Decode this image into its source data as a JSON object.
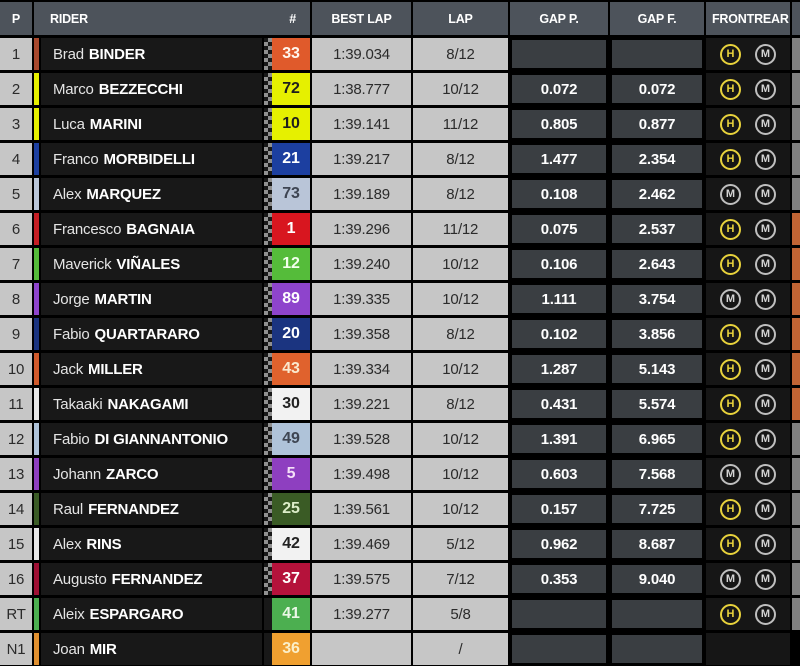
{
  "header": {
    "p": "P",
    "rider": "RIDER",
    "num": "#",
    "best_lap": "BEST LAP",
    "lap": "LAP",
    "gap_p": "GAP P.",
    "gap_f": "GAP F.",
    "front": "FRONT",
    "rear": "REAR"
  },
  "colors": {
    "header_bg": "#4D535B",
    "row_dark_bg": "#181818",
    "gray_cell_bg": "#C6C6C6",
    "gap_box_bg": "#3A3E42",
    "hard_tire": "#E8D23C",
    "medium_tire": "#CFCFCF",
    "edge_gray": "#808080",
    "edge_orange": "#C06434"
  },
  "tire_legend": {
    "H": "hard",
    "M": "medium"
  },
  "rows": [
    {
      "pos": "1",
      "first": "Brad",
      "last": "BINDER",
      "num": "33",
      "num_bg": "#E05A2B",
      "num_fg": "#FFF7EE",
      "stripe": "#A8492E",
      "best": "1:39.034",
      "lap": "8/12",
      "gap_p": "",
      "gap_f": "",
      "front": "H",
      "rear": "M",
      "edge": "#808080",
      "dots": true
    },
    {
      "pos": "2",
      "first": "Marco",
      "last": "BEZZECCHI",
      "num": "72",
      "num_bg": "#E6F000",
      "num_fg": "#1E1E1E",
      "stripe": "#E6F000",
      "best": "1:38.777",
      "lap": "10/12",
      "gap_p": "0.072",
      "gap_f": "0.072",
      "front": "H",
      "rear": "M",
      "edge": "#808080",
      "dots": true
    },
    {
      "pos": "3",
      "first": "Luca",
      "last": "MARINI",
      "num": "10",
      "num_bg": "#E6F000",
      "num_fg": "#1E1E1E",
      "stripe": "#E6F000",
      "best": "1:39.141",
      "lap": "11/12",
      "gap_p": "0.805",
      "gap_f": "0.877",
      "front": "H",
      "rear": "M",
      "edge": "#808080",
      "dots": true
    },
    {
      "pos": "4",
      "first": "Franco",
      "last": "MORBIDELLI",
      "num": "21",
      "num_bg": "#1C3FA0",
      "num_fg": "#FFFFFF",
      "stripe": "#1C3FA0",
      "best": "1:39.217",
      "lap": "8/12",
      "gap_p": "1.477",
      "gap_f": "2.354",
      "front": "H",
      "rear": "M",
      "edge": "#808080",
      "dots": true
    },
    {
      "pos": "5",
      "first": "Alex",
      "last": "MARQUEZ",
      "num": "73",
      "num_bg": "#B9C5D8",
      "num_fg": "#3E4552",
      "stripe": "#B9C5D8",
      "best": "1:39.189",
      "lap": "8/12",
      "gap_p": "0.108",
      "gap_f": "2.462",
      "front": "M",
      "rear": "M",
      "edge": "#808080",
      "dots": true
    },
    {
      "pos": "6",
      "first": "Francesco",
      "last": "BAGNAIA",
      "num": "1",
      "num_bg": "#D8161F",
      "num_fg": "#FFFFFF",
      "stripe": "#C41E24",
      "best": "1:39.296",
      "lap": "11/12",
      "gap_p": "0.075",
      "gap_f": "2.537",
      "front": "H",
      "rear": "M",
      "edge": "#C06434",
      "dots": true
    },
    {
      "pos": "7",
      "first": "Maverick",
      "last": "VIÑALES",
      "num": "12",
      "num_bg": "#55BC3A",
      "num_fg": "#F2FFEC",
      "stripe": "#55BC3A",
      "best": "1:39.240",
      "lap": "10/12",
      "gap_p": "0.106",
      "gap_f": "2.643",
      "front": "H",
      "rear": "M",
      "edge": "#C06434",
      "dots": true
    },
    {
      "pos": "8",
      "first": "Jorge",
      "last": "MARTIN",
      "num": "89",
      "num_bg": "#8E44CC",
      "num_fg": "#FFFFFF",
      "stripe": "#8E44CC",
      "best": "1:39.335",
      "lap": "10/12",
      "gap_p": "1.111",
      "gap_f": "3.754",
      "front": "M",
      "rear": "M",
      "edge": "#C06434",
      "dots": true
    },
    {
      "pos": "9",
      "first": "Fabio",
      "last": "QUARTARARO",
      "num": "20",
      "num_bg": "#1B3480",
      "num_fg": "#FFFFFF",
      "stripe": "#1B3480",
      "best": "1:39.358",
      "lap": "8/12",
      "gap_p": "0.102",
      "gap_f": "3.856",
      "front": "H",
      "rear": "M",
      "edge": "#C06434",
      "dots": true
    },
    {
      "pos": "10",
      "first": "Jack",
      "last": "MILLER",
      "num": "43",
      "num_bg": "#E0622D",
      "num_fg": "#FAE9CE",
      "stripe": "#D05A2C",
      "best": "1:39.334",
      "lap": "10/12",
      "gap_p": "1.287",
      "gap_f": "5.143",
      "front": "H",
      "rear": "M",
      "edge": "#C06434",
      "dots": true
    },
    {
      "pos": "11",
      "first": "Takaaki",
      "last": "NAKAGAMI",
      "num": "30",
      "num_bg": "#F2F2F2",
      "num_fg": "#222222",
      "stripe": "#E8E8E8",
      "best": "1:39.221",
      "lap": "8/12",
      "gap_p": "0.431",
      "gap_f": "5.574",
      "front": "H",
      "rear": "M",
      "edge": "#C06434",
      "dots": true
    },
    {
      "pos": "12",
      "first": "Fabio",
      "last": "DI GIANNANTONIO",
      "num": "49",
      "num_bg": "#AFC3D9",
      "num_fg": "#3E4552",
      "stripe": "#AFC3D9",
      "best": "1:39.528",
      "lap": "10/12",
      "gap_p": "1.391",
      "gap_f": "6.965",
      "front": "H",
      "rear": "M",
      "edge": "#808080",
      "dots": true
    },
    {
      "pos": "13",
      "first": "Johann",
      "last": "ZARCO",
      "num": "5",
      "num_bg": "#8E3FC0",
      "num_fg": "#F5E0F8",
      "stripe": "#8E3FC0",
      "best": "1:39.498",
      "lap": "10/12",
      "gap_p": "0.603",
      "gap_f": "7.568",
      "front": "M",
      "rear": "M",
      "edge": "#808080",
      "dots": true
    },
    {
      "pos": "14",
      "first": "Raul",
      "last": "FERNANDEZ",
      "num": "25",
      "num_bg": "#3A5B25",
      "num_fg": "#DCEDC8",
      "stripe": "#3A5B25",
      "best": "1:39.561",
      "lap": "10/12",
      "gap_p": "0.157",
      "gap_f": "7.725",
      "front": "H",
      "rear": "M",
      "edge": "#808080",
      "dots": true
    },
    {
      "pos": "15",
      "first": "Alex",
      "last": "RINS",
      "num": "42",
      "num_bg": "#F2F2F2",
      "num_fg": "#222222",
      "stripe": "#E8E8E8",
      "best": "1:39.469",
      "lap": "5/12",
      "gap_p": "0.962",
      "gap_f": "8.687",
      "front": "H",
      "rear": "M",
      "edge": "#808080",
      "dots": true
    },
    {
      "pos": "16",
      "first": "Augusto",
      "last": "FERNANDEZ",
      "num": "37",
      "num_bg": "#B5123B",
      "num_fg": "#FFFFFF",
      "stripe": "#9E1034",
      "best": "1:39.575",
      "lap": "7/12",
      "gap_p": "0.353",
      "gap_f": "9.040",
      "front": "M",
      "rear": "M",
      "edge": "#808080",
      "dots": true
    },
    {
      "pos": "RT",
      "first": "Aleix",
      "last": "ESPARGARO",
      "num": "41",
      "num_bg": "#4CAF50",
      "num_fg": "#EAF7E6",
      "stripe": "#4CAF50",
      "best": "1:39.277",
      "lap": "5/8",
      "gap_p": "",
      "gap_f": "",
      "front": "H",
      "rear": "M",
      "edge": "#808080",
      "dots": false
    },
    {
      "pos": "N1",
      "first": "Joan",
      "last": "MIR",
      "num": "36",
      "num_bg": "#F0A030",
      "num_fg": "#FBEFC8",
      "stripe": "#E09030",
      "best": "",
      "lap": "/",
      "gap_p": "",
      "gap_f": "",
      "front": "",
      "rear": "",
      "edge": "",
      "dots": false
    }
  ]
}
